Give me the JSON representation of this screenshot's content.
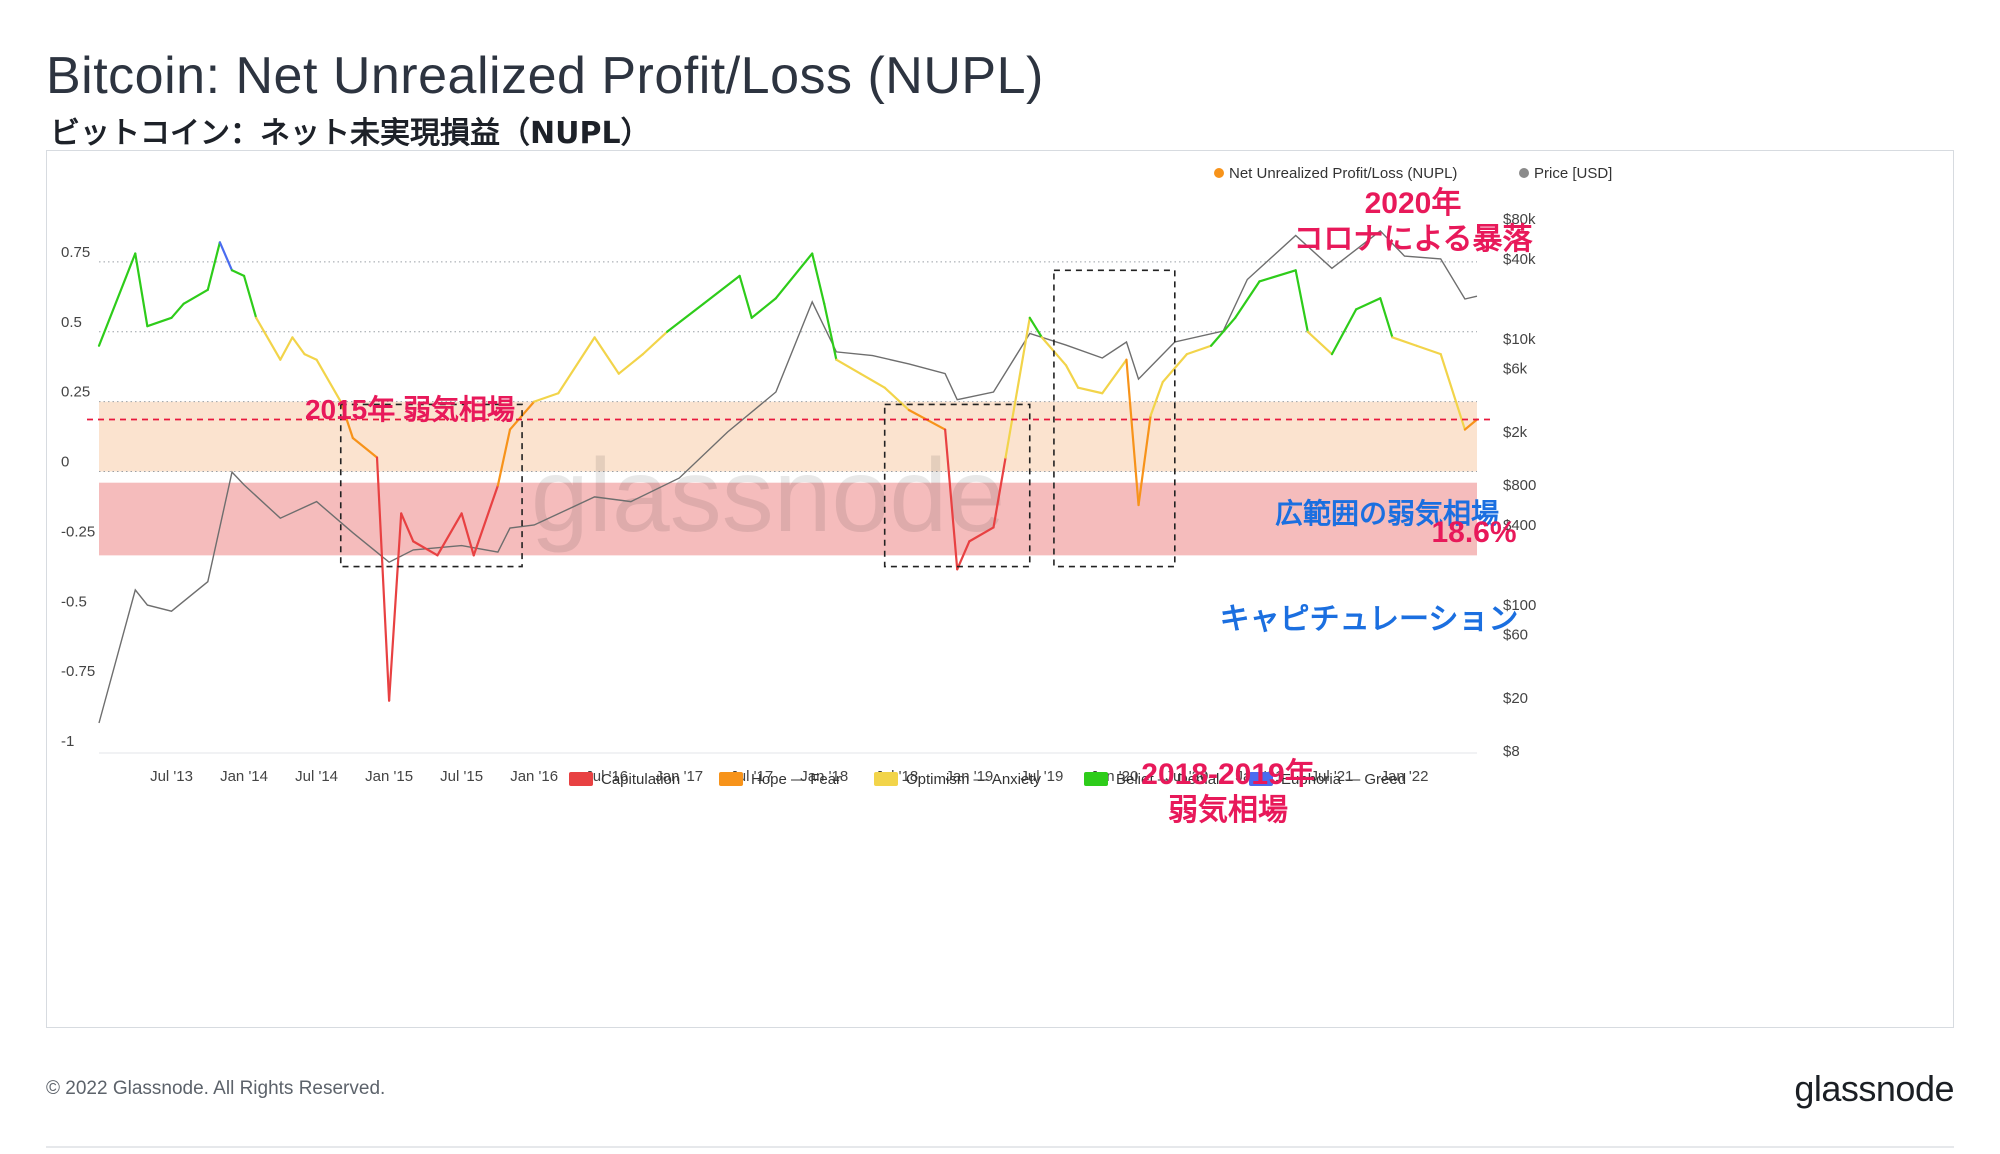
{
  "title": "Bitcoin: Net Unrealized Profit/Loss (NUPL)",
  "subtitle": "ビットコイン：ネット未実現損益（NUPL）",
  "footer": {
    "copyright": "© 2022 Glassnode. All Rights Reserved.",
    "logo": "glassnode"
  },
  "chart_data": {
    "type": "line",
    "watermark": "glassnode",
    "x_ticks": [
      "Jul '13",
      "Jan '14",
      "Jul '14",
      "Jan '15",
      "Jul '15",
      "Jan '16",
      "Jul '16",
      "Jan '17",
      "Jul '17",
      "Jan '18",
      "Jul '18",
      "Jan '19",
      "Jul '19",
      "Jan '20",
      "Jul '20",
      "Jan '21",
      "Jul '21",
      "Jan '22"
    ],
    "x_tick_dates": [
      "2013-07",
      "2014-01",
      "2014-07",
      "2015-01",
      "2015-07",
      "2016-01",
      "2016-07",
      "2017-01",
      "2017-07",
      "2018-01",
      "2018-07",
      "2019-01",
      "2019-07",
      "2020-01",
      "2020-07",
      "2021-01",
      "2021-07",
      "2022-01"
    ],
    "x_range": [
      "2013-01",
      "2022-07"
    ],
    "y_left": {
      "ticks": [
        "0.75",
        "0.5",
        "0.25",
        "0",
        "-0.25",
        "-0.5",
        "-0.75",
        "-1"
      ],
      "tick_values": [
        0.75,
        0.5,
        0.25,
        0,
        -0.25,
        -0.5,
        -0.75,
        -1
      ],
      "range": [
        -1,
        0.95
      ],
      "gridlines_at": [
        0.75,
        0.5,
        0.25,
        0
      ]
    },
    "y_right": {
      "label": "Price [USD]",
      "scale": "log",
      "ticks": [
        "$80k",
        "$40k",
        "$10k",
        "$6k",
        "$2k",
        "$800",
        "$400",
        "$100",
        "$60",
        "$20",
        "$8"
      ],
      "tick_values": [
        80000,
        40000,
        10000,
        6000,
        2000,
        800,
        400,
        100,
        60,
        20,
        8
      ]
    },
    "legend_top": [
      {
        "label": "Net Unrealized Profit/Loss (NUPL)",
        "color": "#f7931a"
      },
      {
        "label": "Price [USD]",
        "color": "#8a8a8a"
      }
    ],
    "legend_bottom": [
      {
        "label": "Capitulation",
        "color": "#e84142"
      },
      {
        "label": "Hope — Fear",
        "color": "#f7931a"
      },
      {
        "label": "Optimism — Anxiety",
        "color": "#f2d44a"
      },
      {
        "label": "Belief — Denial",
        "color": "#2ecc1a"
      },
      {
        "label": "Euphoria — Greed",
        "color": "#4a6cf0"
      }
    ],
    "zones": [
      {
        "from": 0.0,
        "to": 0.25,
        "color": "#fbe3cf"
      },
      {
        "from": -0.3,
        "to": -0.04,
        "color": "#f5bcbc"
      }
    ],
    "zone_boundaries": [
      0.75,
      0.5,
      0.25,
      0
    ],
    "threshold_line": {
      "value": 0.186,
      "color": "#e8193c"
    },
    "nupl_series": {
      "name": "Net Unrealized Profit/Loss (NUPL)",
      "points": [
        [
          "2013-01",
          0.45
        ],
        [
          "2013-04",
          0.78
        ],
        [
          "2013-05",
          0.52
        ],
        [
          "2013-07",
          0.55
        ],
        [
          "2013-08",
          0.6
        ],
        [
          "2013-10",
          0.65
        ],
        [
          "2013-11",
          0.82
        ],
        [
          "2013-12",
          0.72
        ],
        [
          "2014-01",
          0.7
        ],
        [
          "2014-02",
          0.55
        ],
        [
          "2014-04",
          0.4
        ],
        [
          "2014-05",
          0.48
        ],
        [
          "2014-06",
          0.42
        ],
        [
          "2014-07",
          0.4
        ],
        [
          "2014-09",
          0.25
        ],
        [
          "2014-10",
          0.12
        ],
        [
          "2014-12",
          0.05
        ],
        [
          "2015-01",
          -0.82
        ],
        [
          "2015-02",
          -0.15
        ],
        [
          "2015-03",
          -0.25
        ],
        [
          "2015-05",
          -0.3
        ],
        [
          "2015-07",
          -0.15
        ],
        [
          "2015-08",
          -0.3
        ],
        [
          "2015-10",
          -0.05
        ],
        [
          "2015-11",
          0.15
        ],
        [
          "2016-01",
          0.25
        ],
        [
          "2016-03",
          0.28
        ],
        [
          "2016-06",
          0.48
        ],
        [
          "2016-08",
          0.35
        ],
        [
          "2016-10",
          0.42
        ],
        [
          "2016-12",
          0.5
        ],
        [
          "2017-03",
          0.6
        ],
        [
          "2017-06",
          0.7
        ],
        [
          "2017-07",
          0.55
        ],
        [
          "2017-09",
          0.62
        ],
        [
          "2017-12",
          0.78
        ],
        [
          "2018-01",
          0.6
        ],
        [
          "2018-02",
          0.4
        ],
        [
          "2018-04",
          0.35
        ],
        [
          "2018-06",
          0.3
        ],
        [
          "2018-08",
          0.22
        ],
        [
          "2018-11",
          0.15
        ],
        [
          "2018-12",
          -0.35
        ],
        [
          "2019-01",
          -0.25
        ],
        [
          "2019-03",
          -0.2
        ],
        [
          "2019-04",
          0.05
        ],
        [
          "2019-06",
          0.55
        ],
        [
          "2019-07",
          0.48
        ],
        [
          "2019-09",
          0.38
        ],
        [
          "2019-10",
          0.3
        ],
        [
          "2019-12",
          0.28
        ],
        [
          "2020-02",
          0.4
        ],
        [
          "2020-03",
          -0.12
        ],
        [
          "2020-04",
          0.2
        ],
        [
          "2020-05",
          0.32
        ],
        [
          "2020-07",
          0.42
        ],
        [
          "2020-09",
          0.45
        ],
        [
          "2020-11",
          0.55
        ],
        [
          "2021-01",
          0.68
        ],
        [
          "2021-04",
          0.72
        ],
        [
          "2021-05",
          0.5
        ],
        [
          "2021-07",
          0.42
        ],
        [
          "2021-09",
          0.58
        ],
        [
          "2021-11",
          0.62
        ],
        [
          "2021-12",
          0.48
        ],
        [
          "2022-02",
          0.45
        ],
        [
          "2022-04",
          0.42
        ],
        [
          "2022-06",
          0.15
        ],
        [
          "2022-07",
          0.186
        ]
      ]
    },
    "price_series": {
      "name": "Price [USD]",
      "points": [
        [
          "2013-01",
          13
        ],
        [
          "2013-04",
          130
        ],
        [
          "2013-05",
          100
        ],
        [
          "2013-07",
          90
        ],
        [
          "2013-10",
          150
        ],
        [
          "2013-12",
          1000
        ],
        [
          "2014-01",
          800
        ],
        [
          "2014-04",
          450
        ],
        [
          "2014-07",
          600
        ],
        [
          "2014-10",
          350
        ],
        [
          "2015-01",
          210
        ],
        [
          "2015-03",
          260
        ],
        [
          "2015-07",
          280
        ],
        [
          "2015-10",
          250
        ],
        [
          "2015-11",
          380
        ],
        [
          "2016-01",
          400
        ],
        [
          "2016-06",
          650
        ],
        [
          "2016-09",
          600
        ],
        [
          "2017-01",
          900
        ],
        [
          "2017-05",
          2000
        ],
        [
          "2017-09",
          4000
        ],
        [
          "2017-12",
          19000
        ],
        [
          "2018-02",
          8000
        ],
        [
          "2018-05",
          7500
        ],
        [
          "2018-08",
          6500
        ],
        [
          "2018-11",
          5500
        ],
        [
          "2018-12",
          3500
        ],
        [
          "2019-03",
          4000
        ],
        [
          "2019-06",
          11000
        ],
        [
          "2019-09",
          9000
        ],
        [
          "2019-12",
          7200
        ],
        [
          "2020-02",
          9500
        ],
        [
          "2020-03",
          5000
        ],
        [
          "2020-06",
          9500
        ],
        [
          "2020-10",
          11500
        ],
        [
          "2020-12",
          28000
        ],
        [
          "2021-04",
          60000
        ],
        [
          "2021-07",
          34000
        ],
        [
          "2021-11",
          65000
        ],
        [
          "2022-01",
          42000
        ],
        [
          "2022-04",
          40000
        ],
        [
          "2022-06",
          20000
        ],
        [
          "2022-07",
          21000
        ]
      ]
    },
    "annotations": [
      {
        "text": "2015年 弱気相場",
        "color": "#e8195a",
        "box": [
          "2014-09",
          "2015-12",
          -0.34,
          0.24
        ]
      },
      {
        "text": "2018-2019年\n弱気相場",
        "color": "#e8195a",
        "box": [
          "2018-06",
          "2019-06",
          -0.34,
          0.24
        ]
      },
      {
        "text": "2020年\nコロナによる暴落",
        "color": "#e8195a",
        "box": [
          "2019-08",
          "2020-06",
          -0.34,
          0.72
        ]
      },
      {
        "text": "広範囲の弱気相場",
        "color": "#1b6fe0"
      },
      {
        "text": "18.6%",
        "color": "#e8195a"
      },
      {
        "text": "キャピチュレーション",
        "color": "#1b6fe0"
      }
    ]
  }
}
